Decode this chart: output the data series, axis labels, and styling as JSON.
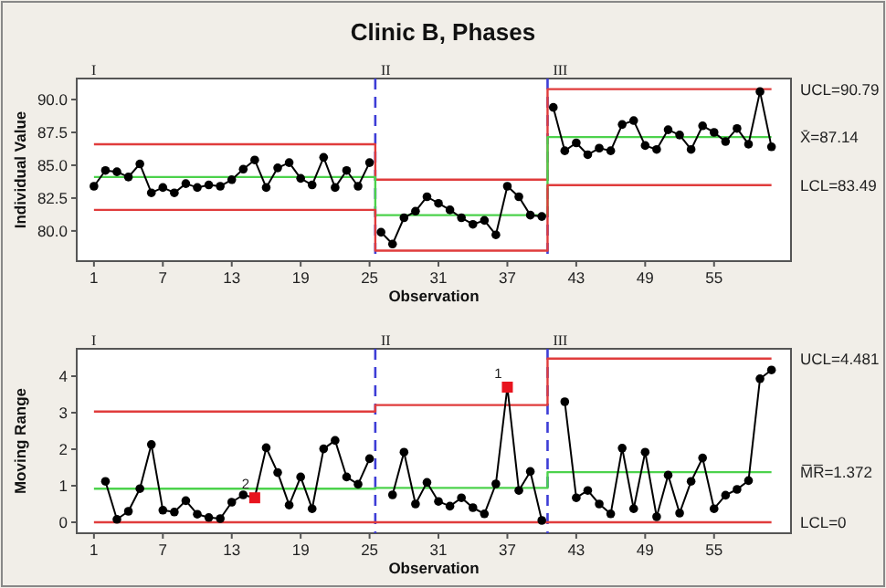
{
  "chart_data": [
    {
      "type": "line",
      "title": "Clinic B, Phases",
      "xlabel": "Observation",
      "ylabel": "Individual Value",
      "marker": "circle",
      "grid": false,
      "xlim": [
        -0.5,
        61.7
      ],
      "xticks": [
        1,
        7,
        13,
        19,
        25,
        31,
        37,
        43,
        49,
        55
      ],
      "ylim": [
        77.7,
        91.6
      ],
      "yticks": [
        {
          "value": 80,
          "label": "80.0"
        },
        {
          "value": 82.5,
          "label": "82.5"
        },
        {
          "value": 85,
          "label": "85.0"
        },
        {
          "value": 87.5,
          "label": "87.5"
        },
        {
          "value": 90,
          "label": "90.0"
        }
      ],
      "series": [
        {
          "color": "#000000",
          "x": [
            1,
            2,
            3,
            4,
            5,
            6,
            7,
            8,
            9,
            10,
            11,
            12,
            13,
            14,
            15,
            16,
            17,
            18,
            19,
            20,
            21,
            22,
            23,
            24,
            25
          ],
          "values": [
            83.4,
            84.6,
            84.5,
            84.1,
            85.1,
            82.9,
            83.3,
            82.9,
            83.6,
            83.3,
            83.5,
            83.4,
            83.9,
            84.7,
            85.4,
            83.3,
            84.8,
            85.2,
            84.0,
            83.5,
            85.6,
            83.3,
            84.6,
            83.4,
            85.2
          ]
        },
        {
          "color": "#000000",
          "x": [
            26,
            27,
            28,
            29,
            30,
            31,
            32,
            33,
            34,
            35,
            36,
            37,
            38,
            39,
            40
          ],
          "values": [
            79.9,
            79.0,
            81.0,
            81.5,
            82.6,
            82.1,
            81.6,
            81.0,
            80.5,
            80.8,
            79.7,
            83.4,
            82.6,
            81.2,
            81.1
          ]
        },
        {
          "color": "#000000",
          "x": [
            41,
            42,
            43,
            44,
            45,
            46,
            47,
            48,
            49,
            50,
            51,
            52,
            53,
            54,
            55,
            56,
            57,
            58,
            59,
            60
          ],
          "values": [
            89.4,
            86.1,
            86.7,
            85.8,
            86.3,
            86.1,
            88.1,
            88.4,
            86.5,
            86.2,
            87.7,
            87.3,
            86.2,
            88.0,
            87.5,
            86.8,
            87.8,
            86.6,
            90.6,
            86.4
          ]
        },
        {
          "type": "step",
          "name": "UCL=90.79",
          "color": "#e03c3c",
          "marker": "none",
          "x": [
            1,
            25.5,
            40.5,
            60
          ],
          "values": [
            86.6,
            83.9,
            90.79,
            90.79
          ]
        },
        {
          "type": "step",
          "name": "X̄=87.14",
          "color": "#4cd24c",
          "marker": "none",
          "x": [
            1,
            25.5,
            40.5,
            60
          ],
          "values": [
            84.1,
            81.2,
            87.14,
            87.14
          ]
        },
        {
          "type": "step",
          "name": "LCL=83.49",
          "color": "#e03c3c",
          "marker": "none",
          "x": [
            1,
            25.5,
            40.5,
            60
          ],
          "values": [
            81.6,
            78.5,
            83.49,
            83.49
          ]
        }
      ],
      "ref_lines": [
        {
          "axis": "x",
          "value": 25.5,
          "label": "II",
          "color": "#3d3dd6",
          "line_style": "dashed"
        },
        {
          "axis": "x",
          "value": 40.5,
          "label": "III",
          "color": "#3d3dd6",
          "line_style": "dashed"
        }
      ],
      "annotations": [
        "I"
      ]
    },
    {
      "type": "line",
      "xlabel": "Observation",
      "ylabel": "Moving Range",
      "marker": "circle",
      "grid": false,
      "xlim": [
        -0.5,
        61.7
      ],
      "xticks": [
        1,
        7,
        13,
        19,
        25,
        31,
        37,
        43,
        49,
        55
      ],
      "ylim": [
        -0.3,
        4.75
      ],
      "yticks": [
        0,
        1,
        2,
        3,
        4
      ],
      "series": [
        {
          "color": "#000000",
          "x": [
            2,
            3,
            4,
            5,
            6,
            7,
            8,
            9,
            10,
            11,
            12,
            13,
            14,
            15,
            16,
            17,
            18,
            19,
            20,
            21,
            22,
            23,
            24,
            25
          ],
          "values": [
            1.12,
            0.08,
            0.3,
            0.92,
            2.13,
            0.33,
            0.28,
            0.59,
            0.22,
            0.13,
            0.1,
            0.55,
            0.75,
            0.67,
            2.04,
            1.36,
            0.47,
            1.24,
            0.37,
            2.01,
            2.24,
            1.24,
            1.04,
            1.74
          ]
        },
        {
          "color": "#000000",
          "x": [
            27,
            28,
            29,
            30,
            31,
            32,
            33,
            34,
            35,
            36,
            37,
            38,
            39,
            40
          ],
          "values": [
            0.75,
            1.92,
            0.5,
            1.09,
            0.57,
            0.44,
            0.67,
            0.4,
            0.23,
            1.05,
            3.7,
            0.87,
            1.39,
            0.05
          ]
        },
        {
          "color": "#000000",
          "x": [
            42,
            43,
            44,
            45,
            46,
            47,
            48,
            49,
            50,
            51,
            52,
            53,
            54,
            55,
            56,
            57,
            58,
            59,
            60
          ],
          "values": [
            3.3,
            0.67,
            0.87,
            0.5,
            0.23,
            2.03,
            0.37,
            1.92,
            0.15,
            1.29,
            0.25,
            1.12,
            1.76,
            0.37,
            0.74,
            0.9,
            1.14,
            3.93,
            4.17
          ]
        },
        {
          "type": "scatter",
          "color": "#e8141e",
          "marker": "square",
          "x": [
            15,
            37
          ],
          "values": [
            0.67,
            3.7
          ]
        },
        {
          "type": "step",
          "name": "UCL=4.481",
          "color": "#e03c3c",
          "marker": "none",
          "x": [
            1,
            25.5,
            40.5,
            60
          ],
          "values": [
            3.03,
            3.21,
            4.481,
            4.481
          ]
        },
        {
          "type": "step",
          "name": "M̅R̅=1.372",
          "color": "#4cd24c",
          "marker": "none",
          "x": [
            1,
            25.5,
            40.5,
            60
          ],
          "values": [
            0.92,
            0.94,
            1.372,
            1.372
          ]
        },
        {
          "type": "step",
          "name": "LCL=0",
          "color": "#e03c3c",
          "marker": "none",
          "x": [
            1,
            25.5,
            40.5,
            60
          ],
          "values": [
            0,
            0,
            0,
            0
          ]
        }
      ],
      "ref_lines": [
        {
          "axis": "x",
          "value": 25.5,
          "label": "II",
          "color": "#3d3dd6",
          "line_style": "dashed"
        },
        {
          "axis": "x",
          "value": 40.5,
          "label": "III",
          "color": "#3d3dd6",
          "line_style": "dashed"
        }
      ],
      "annotations": [
        "I",
        {
          "text": "2",
          "x": 15,
          "y": 0.67
        },
        {
          "text": "1",
          "x": 37,
          "y": 3.7
        }
      ]
    }
  ]
}
